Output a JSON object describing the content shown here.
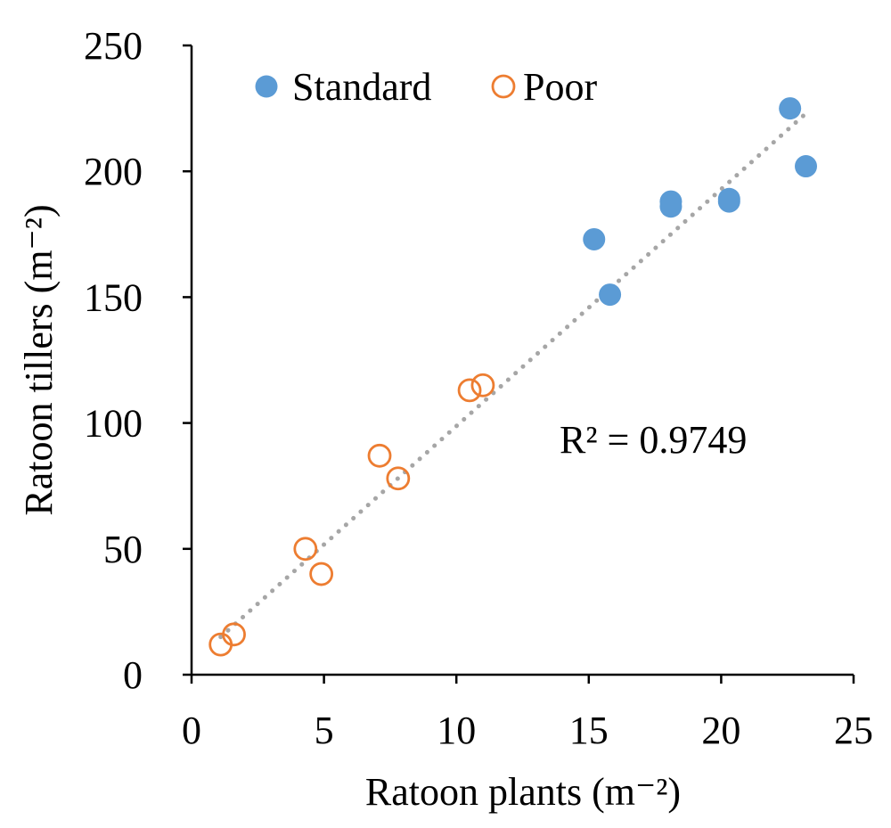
{
  "chart_data": {
    "type": "scatter",
    "xlabel": "Ratoon plants (m⁻²)",
    "ylabel": "Ratoon tillers (m⁻²)",
    "xlim": [
      0,
      25
    ],
    "ylim": [
      0,
      250
    ],
    "x_ticks": [
      "0",
      "5",
      "10",
      "15",
      "20",
      "25"
    ],
    "y_ticks": [
      "0",
      "50",
      "100",
      "150",
      "200",
      "250"
    ],
    "grid": false,
    "legend_position": "top-left",
    "series": [
      {
        "name": "Standard",
        "marker": "filled-circle",
        "color": "#5b9bd5",
        "points": [
          {
            "x": 15.2,
            "y": 173
          },
          {
            "x": 15.8,
            "y": 151
          },
          {
            "x": 18.1,
            "y": 188
          },
          {
            "x": 18.1,
            "y": 186
          },
          {
            "x": 20.3,
            "y": 189
          },
          {
            "x": 20.3,
            "y": 188
          },
          {
            "x": 22.6,
            "y": 225
          },
          {
            "x": 23.2,
            "y": 202
          }
        ]
      },
      {
        "name": "Poor",
        "marker": "open-circle",
        "color": "#ed7d31",
        "points": [
          {
            "x": 1.1,
            "y": 12
          },
          {
            "x": 1.6,
            "y": 16
          },
          {
            "x": 4.3,
            "y": 50
          },
          {
            "x": 4.9,
            "y": 40
          },
          {
            "x": 7.1,
            "y": 87
          },
          {
            "x": 7.8,
            "y": 78
          },
          {
            "x": 10.5,
            "y": 113
          },
          {
            "x": 11.0,
            "y": 115
          }
        ]
      }
    ],
    "trendline": {
      "style": "dotted",
      "color": "#a6a6a6",
      "x_range": [
        1.1,
        23.2
      ],
      "y_range": [
        15,
        223
      ]
    },
    "annotation": "R² = 0.9749"
  }
}
